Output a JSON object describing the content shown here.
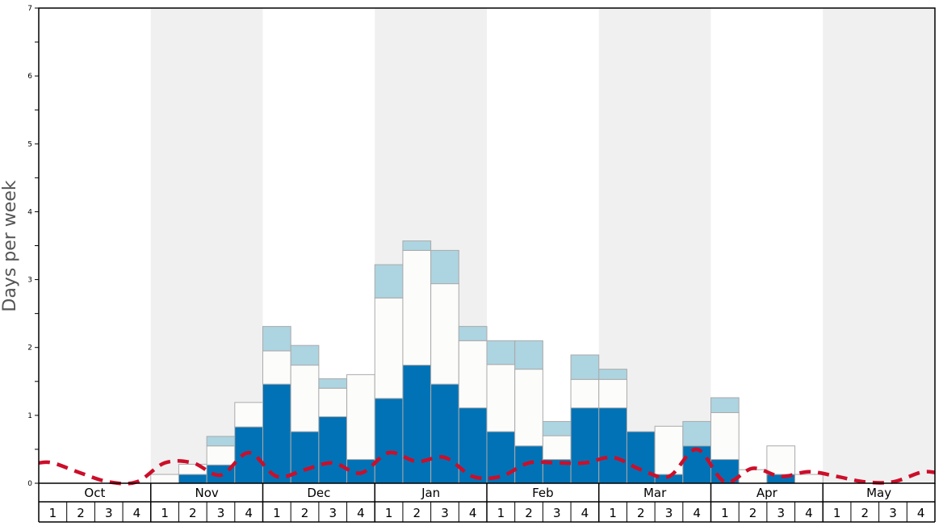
{
  "chart_data": {
    "type": "bar",
    "ylabel": "Days per week",
    "ylim": [
      0,
      7
    ],
    "yticks": [
      0,
      1,
      2,
      3,
      4,
      5,
      6,
      7
    ],
    "months": [
      "Oct",
      "Nov",
      "Dec",
      "Jan",
      "Feb",
      "Mar",
      "Apr",
      "May"
    ],
    "weeks": [
      "1",
      "2",
      "3",
      "4"
    ],
    "stacked": true,
    "grid": false,
    "colors": {
      "series_1": "#0072b5",
      "series_2": "#fcfcfb",
      "series_3": "#add4e1",
      "line": "#cc0e2a",
      "band": "#f0f0f0",
      "bar_edge": "#aaaaaa"
    },
    "series": [
      {
        "values": [
          0,
          0,
          0,
          0,
          0,
          0.13,
          0.27,
          0.83,
          1.46,
          0.76,
          0.98,
          0.35,
          1.25,
          1.74,
          1.46,
          1.11,
          0.76,
          0.55,
          0.35,
          1.11,
          1.11,
          0.76,
          0.13,
          0.55,
          0.35,
          0,
          0.13,
          0,
          0,
          0,
          0,
          0
        ]
      },
      {
        "values": [
          0,
          0,
          0,
          0,
          0.13,
          0.15,
          0.28,
          0.36,
          0.49,
          0.98,
          0.42,
          1.25,
          1.48,
          1.69,
          1.48,
          0.99,
          0.99,
          1.13,
          0.35,
          0.42,
          0.42,
          0,
          0.71,
          0,
          0.69,
          0.2,
          0.42,
          0.13,
          0,
          0,
          0,
          0
        ]
      },
      {
        "values": [
          0,
          0,
          0,
          0,
          0,
          0,
          0.14,
          0,
          0.36,
          0.29,
          0.14,
          0,
          0.49,
          0.14,
          0.49,
          0.21,
          0.35,
          0.42,
          0.21,
          0.36,
          0.15,
          0,
          0,
          0.36,
          0.22,
          0,
          0,
          0,
          0,
          0,
          0,
          0
        ]
      },
      {
        "values": [
          0.3,
          0.15,
          0.02,
          0.02,
          0.3,
          0.3,
          0.12,
          0.45,
          0.1,
          0.2,
          0.3,
          0.15,
          0.45,
          0.32,
          0.38,
          0.1,
          0.1,
          0.3,
          0.3,
          0.3,
          0.38,
          0.2,
          0.1,
          0.5,
          0.02,
          0.22,
          0.1,
          0.17,
          0.1,
          0.02,
          0.02,
          0.16
        ]
      }
    ]
  }
}
